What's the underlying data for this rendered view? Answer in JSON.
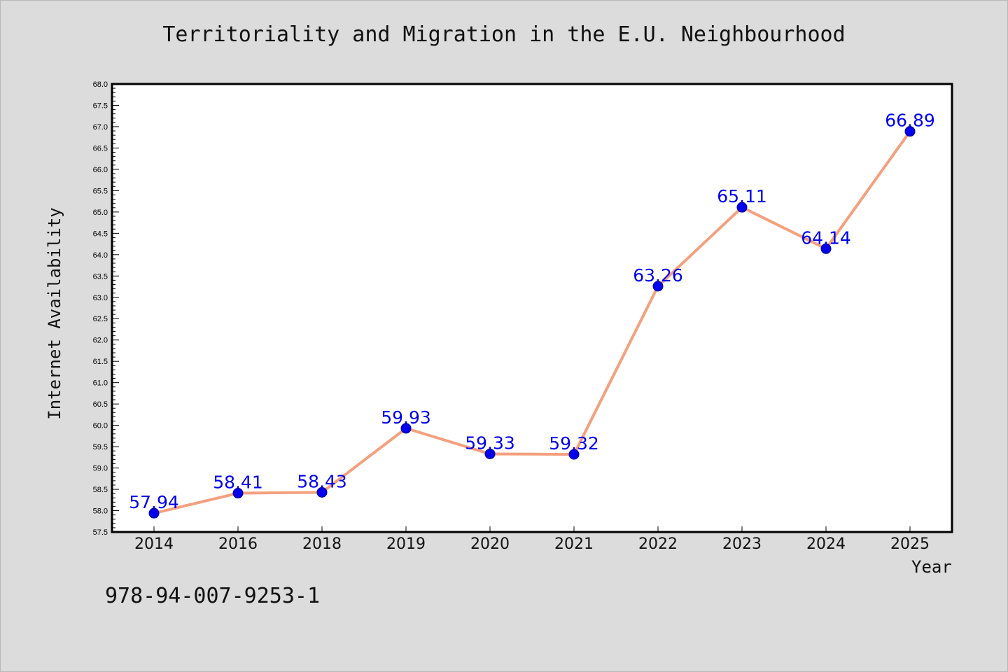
{
  "chart_data": {
    "type": "line",
    "title": "Territoriality and Migration in the E.U. Neighbourhood",
    "xlabel": "Year",
    "ylabel": "Internet Availability",
    "categories": [
      "2014",
      "2016",
      "2018",
      "2019",
      "2020",
      "2021",
      "2022",
      "2023",
      "2024",
      "2025"
    ],
    "values": [
      57.94,
      58.41,
      58.43,
      59.93,
      59.33,
      59.32,
      63.26,
      65.11,
      64.14,
      66.89
    ],
    "data_labels": [
      "57.94",
      "58.41",
      "58.43",
      "59.93",
      "59.33",
      "59.32",
      "63.26",
      "65.11",
      "64.14",
      "66.89"
    ],
    "ylim": [
      57.5,
      68.0
    ],
    "ytick_step": 0.5,
    "grid": false,
    "line_color": "#f4a07e",
    "marker_color": "#0000ee",
    "label_color": "#0000ee"
  },
  "annotation": {
    "isbn": "978-94-007-9253-1"
  }
}
